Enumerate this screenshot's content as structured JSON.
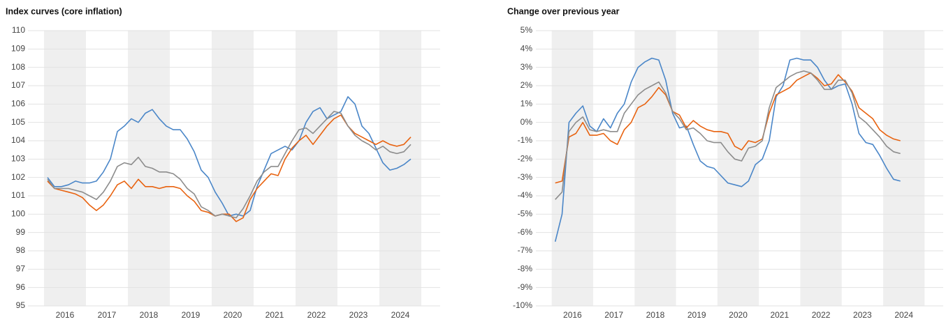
{
  "chart_data": [
    {
      "type": "line",
      "title": "Index curves (core inflation)",
      "categories": [
        null,
        null,
        null,
        "2016",
        null,
        null,
        null,
        null,
        null,
        "2017",
        null,
        null,
        null,
        null,
        null,
        "2018",
        null,
        null,
        null,
        null,
        null,
        "2019",
        null,
        null,
        null,
        null,
        null,
        "2020",
        null,
        null,
        null,
        null,
        null,
        "2021",
        null,
        null,
        null,
        null,
        null,
        "2022",
        null,
        null,
        null,
        null,
        null,
        "2023",
        null,
        null,
        null,
        null,
        null,
        "2024",
        null
      ],
      "ylim": [
        95,
        110
      ],
      "yticks": [
        95,
        96,
        97,
        98,
        99,
        100,
        101,
        102,
        103,
        104,
        105,
        106,
        107,
        108,
        109,
        110
      ],
      "grid": true,
      "series": [
        {
          "color": "#4a86c8",
          "values": [
            102.0,
            101.5,
            101.5,
            101.6,
            101.8,
            101.7,
            101.7,
            101.8,
            102.3,
            103.0,
            104.5,
            104.8,
            105.2,
            105.0,
            105.5,
            105.7,
            105.2,
            104.8,
            104.6,
            104.6,
            104.1,
            103.4,
            102.4,
            102.0,
            101.2,
            100.6,
            99.9,
            100.0,
            99.9,
            100.2,
            101.5,
            102.4,
            103.3,
            103.5,
            103.7,
            103.5,
            104.0,
            105.0,
            105.6,
            105.8,
            105.2,
            105.4,
            105.6,
            106.4,
            106.0,
            104.8,
            104.4,
            103.6,
            102.8,
            102.4,
            102.5,
            102.7,
            103.0
          ]
        },
        {
          "color": "#e8620f",
          "values": [
            101.8,
            101.4,
            101.3,
            101.2,
            101.1,
            100.9,
            100.5,
            100.2,
            100.5,
            101.0,
            101.6,
            101.8,
            101.4,
            101.9,
            101.5,
            101.5,
            101.4,
            101.5,
            101.5,
            101.4,
            101.0,
            100.7,
            100.2,
            100.1,
            99.9,
            100.0,
            100.0,
            99.6,
            99.8,
            100.8,
            101.4,
            101.8,
            102.2,
            102.1,
            103.0,
            103.6,
            104.0,
            104.3,
            103.8,
            104.3,
            104.8,
            105.2,
            105.4,
            104.8,
            104.4,
            104.2,
            104.0,
            103.8,
            104.0,
            103.8,
            103.7,
            103.8,
            104.2
          ]
        },
        {
          "color": "#8c8c8c",
          "values": [
            101.9,
            101.4,
            101.4,
            101.4,
            101.3,
            101.2,
            101.0,
            100.8,
            101.2,
            101.8,
            102.6,
            102.8,
            102.7,
            103.1,
            102.6,
            102.5,
            102.3,
            102.3,
            102.2,
            101.9,
            101.4,
            101.1,
            100.4,
            100.2,
            99.9,
            100.0,
            99.9,
            99.8,
            100.3,
            101.0,
            101.8,
            102.3,
            102.6,
            102.6,
            103.3,
            104.0,
            104.6,
            104.7,
            104.4,
            104.8,
            105.2,
            105.6,
            105.5,
            104.8,
            104.3,
            104.0,
            103.8,
            103.5,
            103.7,
            103.4,
            103.3,
            103.4,
            103.8
          ]
        }
      ]
    },
    {
      "type": "line",
      "title": "Change over previous year",
      "categories": [
        null,
        null,
        null,
        "2016",
        null,
        null,
        null,
        null,
        null,
        "2017",
        null,
        null,
        null,
        null,
        null,
        "2018",
        null,
        null,
        null,
        null,
        null,
        "2019",
        null,
        null,
        null,
        null,
        null,
        "2020",
        null,
        null,
        null,
        null,
        null,
        "2021",
        null,
        null,
        null,
        null,
        null,
        "2022",
        null,
        null,
        null,
        null,
        null,
        "2023",
        null,
        null,
        null,
        null,
        null,
        "2024"
      ],
      "ylim": [
        -10,
        5
      ],
      "yticks": [
        {
          "value": -10,
          "label": "-10%"
        },
        {
          "value": -9,
          "label": "-9%"
        },
        {
          "value": -8,
          "label": "-8%"
        },
        {
          "value": -7,
          "label": "-7%"
        },
        {
          "value": -6,
          "label": "-6%"
        },
        {
          "value": -5,
          "label": "-5%"
        },
        {
          "value": -4,
          "label": "-4%"
        },
        {
          "value": -3,
          "label": "-3%"
        },
        {
          "value": -2,
          "label": "-2%"
        },
        {
          "value": -1,
          "label": "-1%"
        },
        {
          "value": 0,
          "label": "0%"
        },
        {
          "value": 1,
          "label": "1%"
        },
        {
          "value": 2,
          "label": "2%"
        },
        {
          "value": 3,
          "label": "3%"
        },
        {
          "value": 4,
          "label": "4%"
        },
        {
          "value": 5,
          "label": "5%"
        }
      ],
      "grid": true,
      "series": [
        {
          "color": "#4a86c8",
          "values": [
            -6.5,
            -5.0,
            0.0,
            0.5,
            0.9,
            -0.2,
            -0.5,
            0.2,
            -0.3,
            0.5,
            1.0,
            2.2,
            3.0,
            3.3,
            3.5,
            3.4,
            2.3,
            0.5,
            -0.3,
            -0.2,
            -1.2,
            -2.1,
            -2.4,
            -2.5,
            -2.9,
            -3.3,
            -3.4,
            -3.5,
            -3.2,
            -2.3,
            -2.0,
            -1.0,
            1.4,
            2.0,
            3.4,
            3.5,
            3.4,
            3.4,
            3.0,
            2.3,
            1.8,
            2.0,
            2.1,
            1.0,
            -0.6,
            -1.1,
            -1.2,
            -1.8,
            -2.5,
            -3.1,
            -3.2,
            null
          ]
        },
        {
          "color": "#e8620f",
          "values": [
            -3.3,
            -3.2,
            -0.8,
            -0.6,
            0.0,
            -0.7,
            -0.7,
            -0.6,
            -1.0,
            -1.2,
            -0.4,
            0.0,
            0.8,
            1.0,
            1.4,
            1.9,
            1.5,
            0.6,
            0.4,
            -0.3,
            0.1,
            -0.2,
            -0.4,
            -0.5,
            -0.5,
            -0.6,
            -1.3,
            -1.5,
            -1.0,
            -1.1,
            -0.9,
            0.5,
            1.5,
            1.7,
            1.9,
            2.3,
            2.5,
            2.7,
            2.4,
            2.0,
            2.1,
            2.6,
            2.2,
            1.7,
            0.8,
            0.5,
            0.2,
            -0.4,
            -0.7,
            -0.9,
            -1.0,
            null
          ]
        },
        {
          "color": "#8c8c8c",
          "values": [
            -4.2,
            -3.8,
            -0.5,
            0.0,
            0.3,
            -0.4,
            -0.5,
            -0.4,
            -0.5,
            -0.5,
            0.5,
            1.0,
            1.5,
            1.8,
            2.0,
            2.2,
            1.6,
            0.6,
            0.2,
            -0.4,
            -0.3,
            -0.6,
            -1.0,
            -1.1,
            -1.1,
            -1.6,
            -2.0,
            -2.1,
            -1.4,
            -1.3,
            -1.0,
            0.8,
            1.9,
            2.2,
            2.5,
            2.7,
            2.8,
            2.7,
            2.3,
            1.8,
            1.8,
            2.3,
            2.3,
            1.6,
            0.3,
            0.0,
            -0.4,
            -0.8,
            -1.3,
            -1.6,
            -1.7,
            null
          ]
        }
      ]
    }
  ]
}
